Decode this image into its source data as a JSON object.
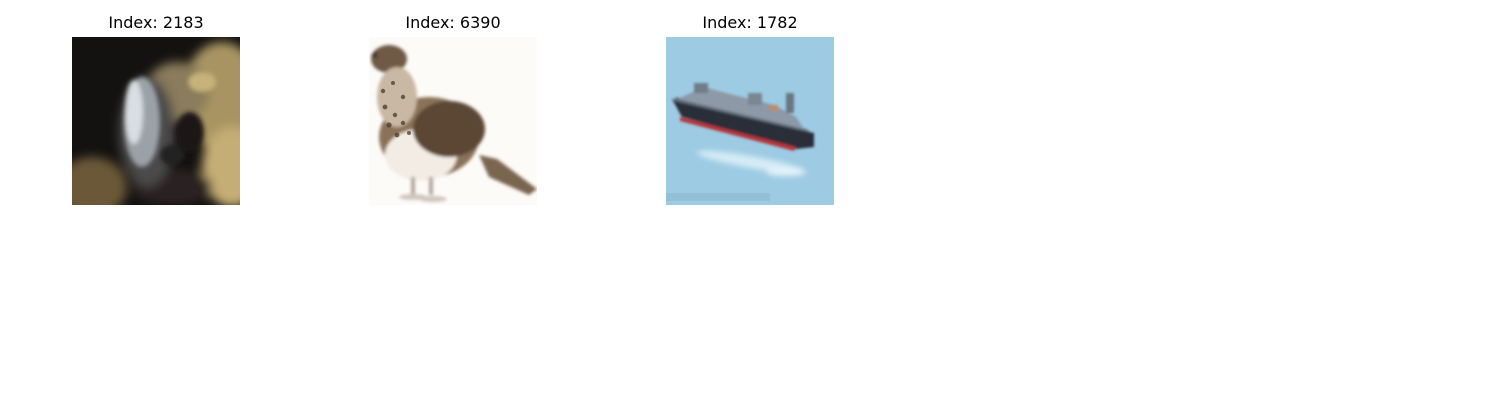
{
  "panels": [
    {
      "title": "Index: 2183"
    },
    {
      "title": "Index: 6390"
    },
    {
      "title": "Index: 1782"
    }
  ]
}
